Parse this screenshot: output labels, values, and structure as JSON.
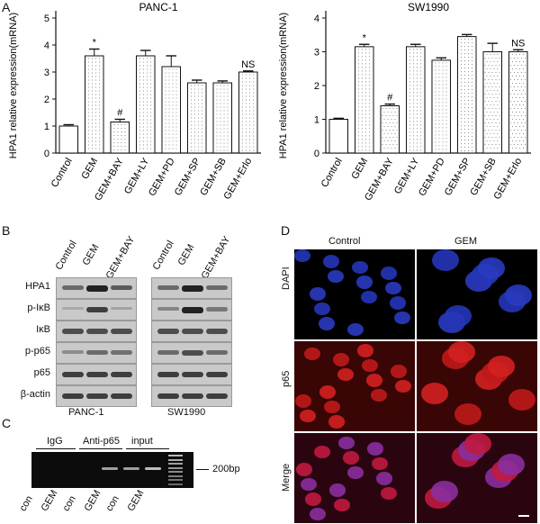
{
  "panels": {
    "a": "A",
    "b": "B",
    "c": "C",
    "d": "D"
  },
  "chart_data": [
    {
      "type": "bar",
      "title": "PANC-1",
      "ylabel": "HPA1 relative expression(mRNA)",
      "xlabel": "",
      "ylim": [
        0,
        5
      ],
      "yticks": [
        0,
        1,
        2,
        3,
        4,
        5
      ],
      "categories": [
        "Control",
        "GEM",
        "GEM+BAY",
        "GEM+LY",
        "GEM+PD",
        "GEM+SP",
        "GEM+SB",
        "GEM+Erlo"
      ],
      "values": [
        1.0,
        3.6,
        1.15,
        3.6,
        3.2,
        2.6,
        2.6,
        3.0
      ],
      "errors": [
        0.05,
        0.25,
        0.1,
        0.2,
        0.4,
        0.1,
        0.07,
        0.04
      ],
      "annotations": [
        "",
        "*",
        "#",
        "",
        "",
        "",
        "",
        "NS"
      ]
    },
    {
      "type": "bar",
      "title": "SW1990",
      "ylabel": "HPA1 relative expression(mRNA)",
      "xlabel": "",
      "ylim": [
        0,
        4
      ],
      "yticks": [
        0,
        1,
        2,
        3,
        4
      ],
      "categories": [
        "Control",
        "GEM",
        "GEM+BAY",
        "GEM+LY",
        "GEM+PD",
        "GEM+SP",
        "GEM+SB",
        "GEM+Erlo"
      ],
      "values": [
        1.0,
        3.15,
        1.4,
        3.15,
        2.75,
        3.45,
        3.0,
        3.0
      ],
      "errors": [
        0.03,
        0.07,
        0.05,
        0.07,
        0.07,
        0.06,
        0.25,
        0.06
      ],
      "annotations": [
        "",
        "*",
        "#",
        "",
        "",
        "",
        "",
        "NS"
      ]
    }
  ],
  "western": {
    "lanes": [
      "Control",
      "GEM",
      "GEM+BAY"
    ],
    "proteins": [
      "HPA1",
      "p-IκB",
      "IκB",
      "p-p65",
      "p65",
      "β-actin"
    ],
    "cells": [
      "PANC-1",
      "SW1990"
    ]
  },
  "chip": {
    "groups": [
      "IgG",
      "Anti-p65",
      "input"
    ],
    "lanes": [
      "con",
      "GEM",
      "con",
      "GEM",
      "con",
      "GEM"
    ],
    "marker": "200bp"
  },
  "if": {
    "columns": [
      "Control",
      "GEM"
    ],
    "rows": [
      "DAPI",
      "p65",
      "Merge"
    ]
  },
  "colors": {
    "bar_fill": "#ffffff",
    "axis": "#111111",
    "dapi": "#1a2a9a",
    "p65": "#b01010",
    "gel": "#0c0c0c"
  }
}
